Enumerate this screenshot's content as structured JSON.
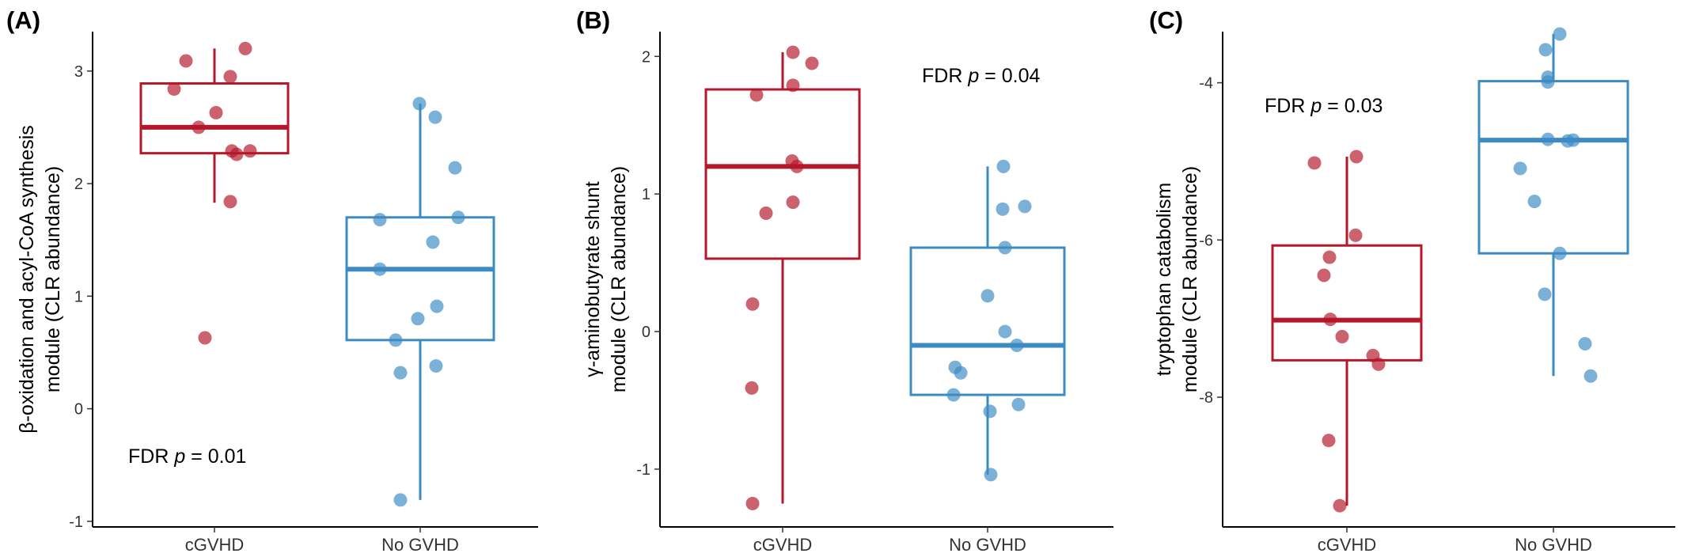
{
  "colors": {
    "cGVHD": "#b5172b",
    "No GVHD": "#3d8bc4"
  },
  "chart_data": [
    {
      "type": "box",
      "panel_label": "(A)",
      "ylabel_lines": [
        "β-oxidation and acyl-CoA synthesis",
        "module (CLR abundance)"
      ],
      "ylim": [
        -1.05,
        3.35
      ],
      "yticks": [
        -1,
        0,
        1,
        2,
        3
      ],
      "annotation": {
        "prefix": "FDR ",
        "italic": "p",
        "suffix": " = 0.01"
      },
      "groups": [
        {
          "name": "cGVHD",
          "q1": 2.27,
          "median": 2.5,
          "q3": 2.89,
          "whisker_low": 1.83,
          "whisker_high": 3.2,
          "points": [
            3.09,
            3.2,
            2.95,
            2.84,
            2.63,
            2.5,
            2.29,
            2.26,
            2.29,
            1.84,
            0.63
          ]
        },
        {
          "name": "No GVHD",
          "q1": 0.61,
          "median": 1.24,
          "q3": 1.7,
          "whisker_low": -0.81,
          "whisker_high": 2.71,
          "points": [
            2.71,
            2.59,
            2.14,
            1.68,
            1.7,
            1.48,
            1.24,
            0.91,
            0.8,
            0.61,
            0.38,
            0.32,
            -0.81
          ]
        }
      ]
    },
    {
      "type": "box",
      "panel_label": "(B)",
      "ylabel_lines": [
        "γ-aminobutyrate shunt",
        "module (CLR abundance)"
      ],
      "ylim": [
        -1.42,
        2.18
      ],
      "yticks": [
        -1,
        0,
        1,
        2
      ],
      "annotation": {
        "prefix": "FDR ",
        "italic": "p",
        "suffix": " = 0.04"
      },
      "groups": [
        {
          "name": "cGVHD",
          "q1": 0.53,
          "median": 1.2,
          "q3": 1.76,
          "whisker_low": -1.25,
          "whisker_high": 2.03,
          "points": [
            2.03,
            1.95,
            1.79,
            1.72,
            1.24,
            1.2,
            0.94,
            0.86,
            0.2,
            -0.41,
            -1.25
          ]
        },
        {
          "name": "No GVHD",
          "q1": -0.46,
          "median": -0.1,
          "q3": 0.61,
          "whisker_low": -1.04,
          "whisker_high": 1.2,
          "points": [
            1.2,
            0.91,
            0.89,
            0.61,
            0.26,
            0.0,
            -0.1,
            -0.26,
            -0.3,
            -0.46,
            -0.53,
            -0.58,
            -1.04
          ]
        }
      ]
    },
    {
      "type": "box",
      "panel_label": "(C)",
      "ylabel_lines": [
        "tryptophan catabolism",
        "module (CLR abundance)"
      ],
      "ylim": [
        -9.65,
        -3.35
      ],
      "yticks": [
        -8,
        -6,
        -4
      ],
      "annotation": {
        "prefix": "FDR ",
        "italic": "p",
        "suffix": " = 0.03"
      },
      "groups": [
        {
          "name": "cGVHD",
          "q1": -7.53,
          "median": -7.02,
          "q3": -6.07,
          "whisker_low": -9.38,
          "whisker_high": -4.94,
          "points": [
            -4.94,
            -5.02,
            -5.94,
            -6.22,
            -6.45,
            -7.01,
            -7.23,
            -7.47,
            -7.58,
            -8.55,
            -9.38
          ]
        },
        {
          "name": "No GVHD",
          "q1": -6.17,
          "median": -4.73,
          "q3": -3.98,
          "whisker_low": -7.73,
          "whisker_high": -3.38,
          "points": [
            -3.38,
            -3.58,
            -3.93,
            -3.99,
            -4.72,
            -4.74,
            -4.73,
            -5.09,
            -5.51,
            -6.17,
            -6.69,
            -7.32,
            -7.73
          ]
        }
      ]
    }
  ]
}
